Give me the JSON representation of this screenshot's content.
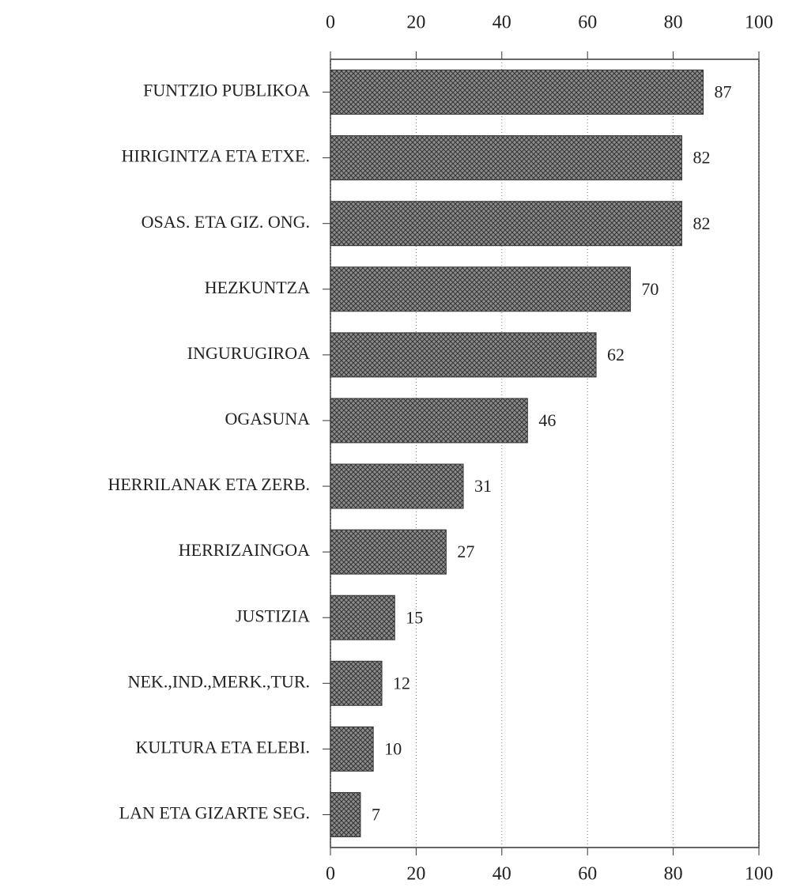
{
  "chart_data": {
    "type": "barh",
    "categories": [
      "FUNTZIO PUBLIKOA",
      "HIRIGINTZA ETA ETXE.",
      "OSAS. ETA GIZ. ONG.",
      "HEZKUNTZA",
      "INGURUGIROA",
      "OGASUNA",
      "HERRILANAK ETA ZERB.",
      "HERRIZAINGOA",
      "JUSTIZIA",
      "NEK.,IND.,MERK.,TUR.",
      "KULTURA ETA ELEBI.",
      "LAN ETA GIZARTE SEG."
    ],
    "values": [
      87,
      82,
      82,
      70,
      62,
      46,
      31,
      27,
      15,
      12,
      10,
      7
    ],
    "color": "#8c8c8c",
    "xlim": [
      0,
      100
    ],
    "xticks": [
      0,
      20,
      40,
      60,
      80,
      100
    ],
    "grid": true
  }
}
